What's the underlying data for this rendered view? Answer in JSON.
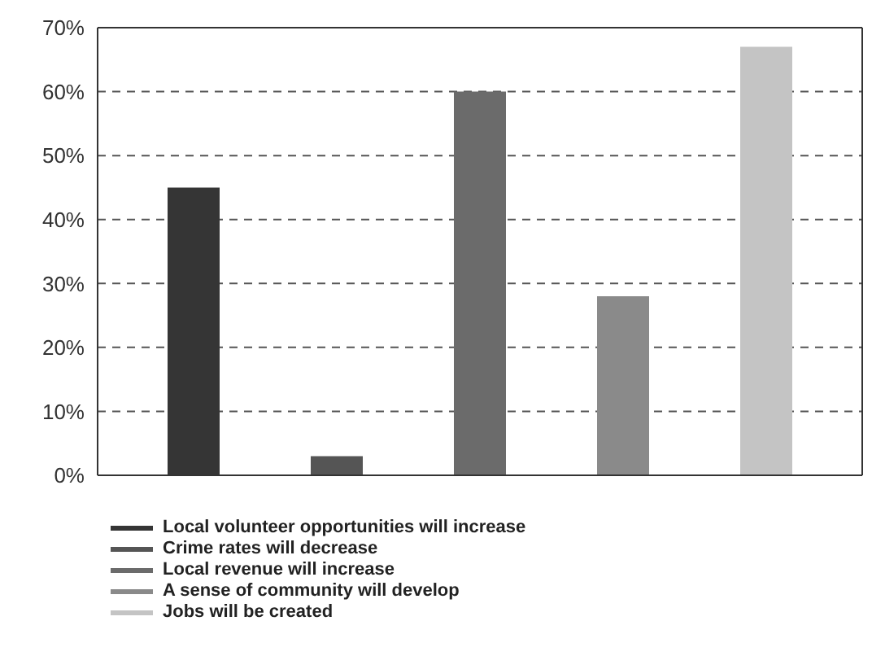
{
  "chart_data": {
    "type": "bar",
    "categories": [
      null
    ],
    "series": [
      {
        "name": "Local volunteer opportunities will increase",
        "color": "#353535",
        "values": [
          45
        ]
      },
      {
        "name": "Crime rates will decrease",
        "color": "#555555",
        "values": [
          3
        ]
      },
      {
        "name": "Local revenue will increase",
        "color": "#6b6b6b",
        "values": [
          60
        ]
      },
      {
        "name": "A sense of community will develop",
        "color": "#8a8a8a",
        "values": [
          28
        ]
      },
      {
        "name": "Jobs will be created",
        "color": "#c4c4c4",
        "values": [
          67
        ]
      }
    ],
    "ylim": [
      0,
      70
    ],
    "yticks": [
      {
        "value": 0,
        "label": "0%"
      },
      {
        "value": 10,
        "label": "10%"
      },
      {
        "value": 20,
        "label": "20%"
      },
      {
        "value": 30,
        "label": "30%"
      },
      {
        "value": 40,
        "label": "40%"
      },
      {
        "value": 50,
        "label": "50%"
      },
      {
        "value": 60,
        "label": "60%"
      },
      {
        "value": 70,
        "label": "70%"
      }
    ],
    "grid": "y",
    "legend": "bottom left"
  }
}
